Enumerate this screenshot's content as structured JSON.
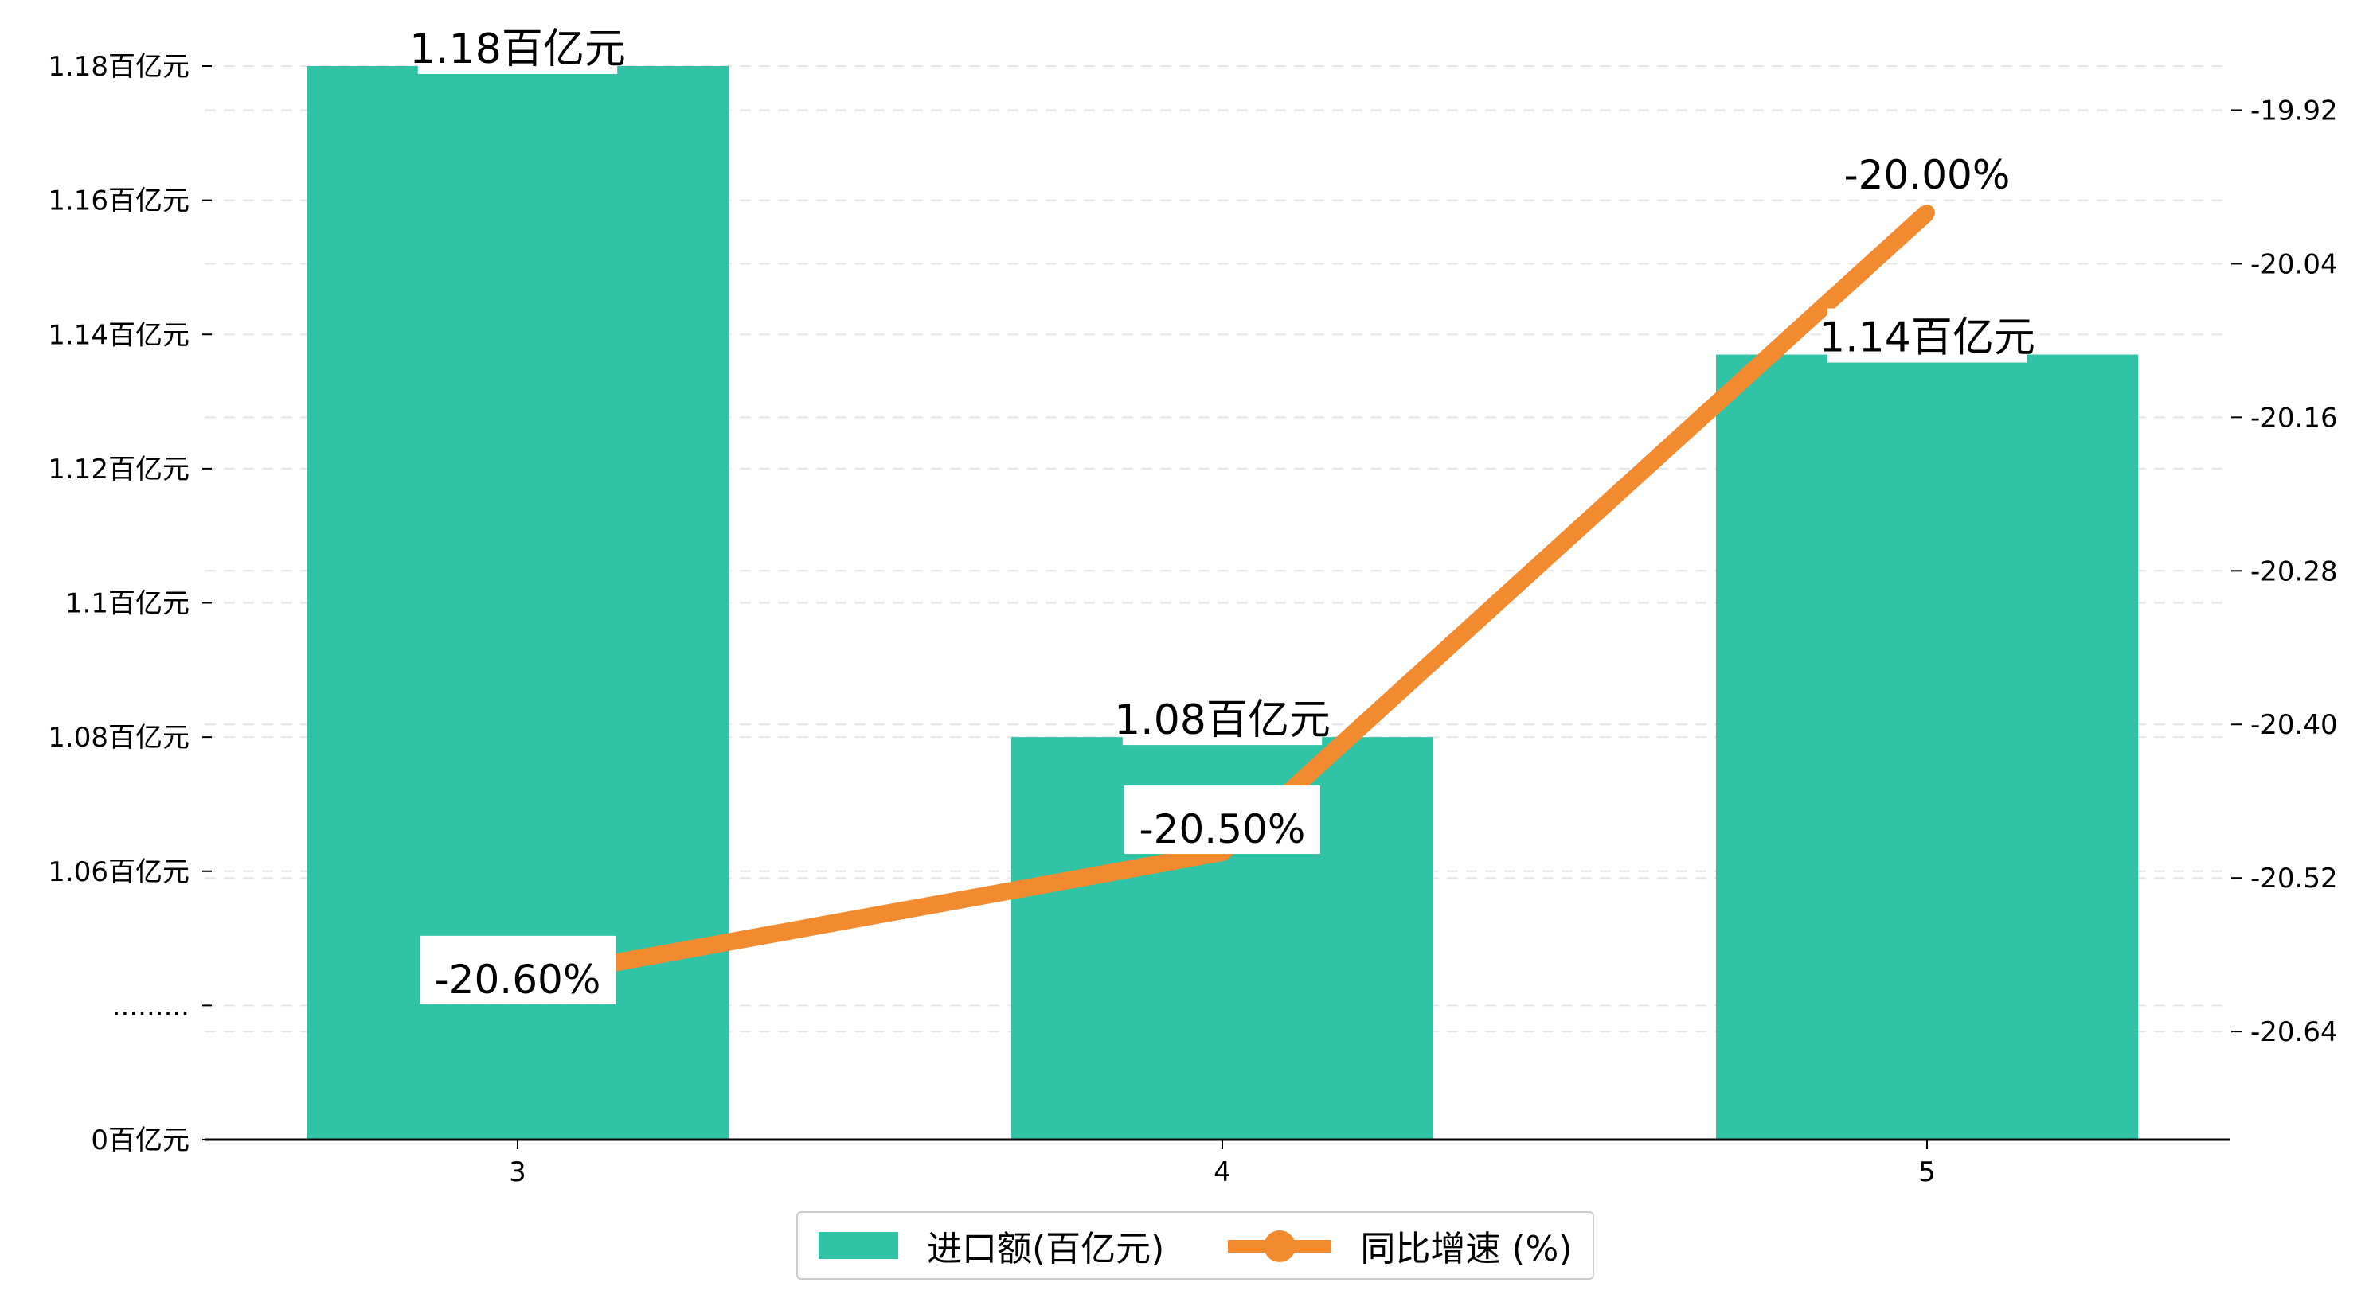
{
  "chart_data": {
    "type": "bar",
    "categories": [
      "3",
      "4",
      "5"
    ],
    "series": [
      {
        "name": "进口额(百亿元)",
        "type": "bar",
        "axis": "left",
        "values": [
          1.18,
          1.08,
          1.137
        ],
        "labels": [
          "1.18百亿元",
          "1.08百亿元",
          "1.14百亿元"
        ],
        "color": "#1abc9c"
      },
      {
        "name": "同比增速 (%)",
        "type": "line",
        "axis": "right",
        "values": [
          -20.6,
          -20.5,
          -20.0
        ],
        "labels": [
          "-20.60%",
          "-20.50%",
          "-20.00%"
        ],
        "color": "#f28a30"
      }
    ],
    "left_axis": {
      "ylim": [
        1.02,
        1.18
      ],
      "broken_axis": true,
      "ticks": [
        {
          "value": 1.02,
          "label": "0百亿元"
        },
        {
          "value": 1.04,
          "label": "........."
        },
        {
          "value": 1.06,
          "label": "1.06百亿元"
        },
        {
          "value": 1.08,
          "label": "1.08百亿元"
        },
        {
          "value": 1.1,
          "label": "1.1百亿元"
        },
        {
          "value": 1.12,
          "label": "1.12百亿元"
        },
        {
          "value": 1.14,
          "label": "1.14百亿元"
        },
        {
          "value": 1.16,
          "label": "1.16百亿元"
        },
        {
          "value": 1.18,
          "label": "1.18百亿元"
        }
      ]
    },
    "right_axis": {
      "ylim": [
        -20.7245,
        -19.8855
      ],
      "ticks": [
        {
          "value": -20.64,
          "label": "-20.64"
        },
        {
          "value": -20.52,
          "label": "-20.52"
        },
        {
          "value": -20.4,
          "label": "-20.40"
        },
        {
          "value": -20.28,
          "label": "-20.28"
        },
        {
          "value": -20.16,
          "label": "-20.16"
        },
        {
          "value": -20.04,
          "label": "-20.04"
        },
        {
          "value": -19.92,
          "label": "-19.92"
        }
      ]
    },
    "grid": true,
    "legend_position": "bottom-center"
  },
  "colors": {
    "bar": "#1abc9c",
    "line": "#f28a30",
    "grid": "#e6e6e6",
    "axis": "#000000"
  }
}
